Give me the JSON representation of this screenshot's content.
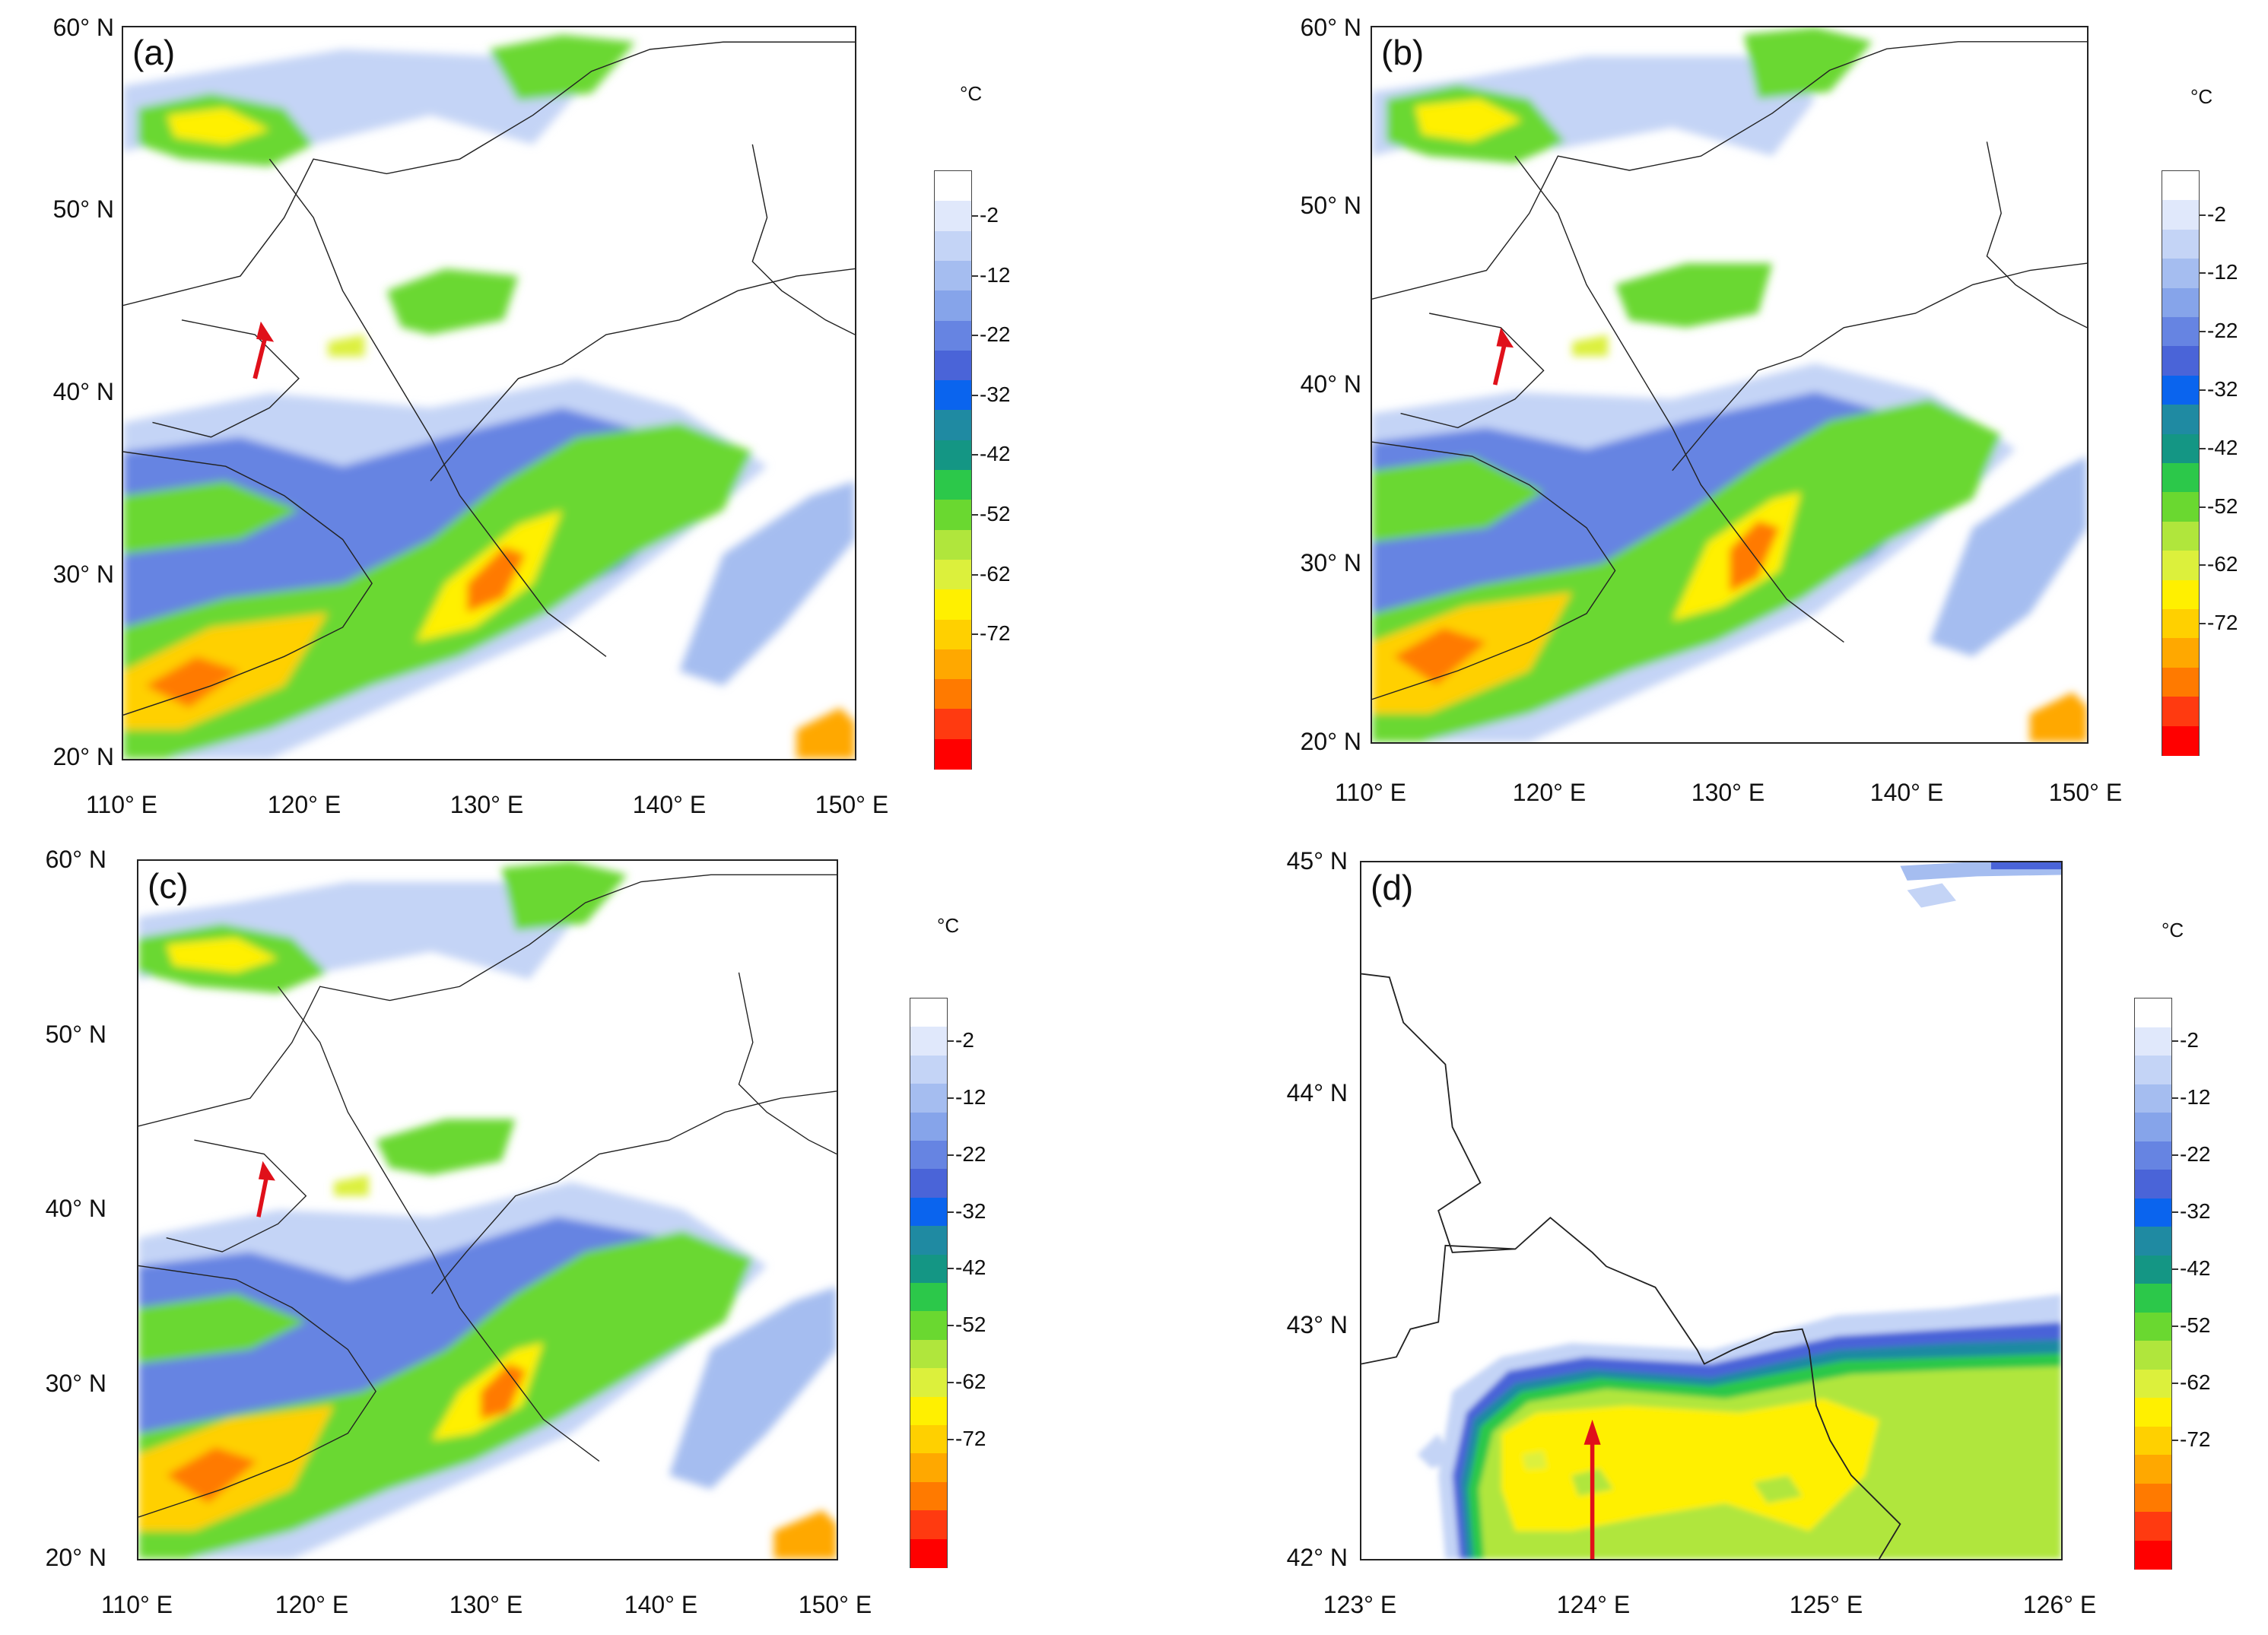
{
  "colorbar": {
    "unit": "°C",
    "labels": [
      "-2",
      "-12",
      "-22",
      "-32",
      "-42",
      "-52",
      "-62",
      "-72"
    ],
    "colors": [
      "#ffffff",
      "#e0e8fb",
      "#c4d4f6",
      "#a5bdf0",
      "#86a4ea",
      "#6684e2",
      "#4a64d8",
      "#0a64ee",
      "#1f8aa2",
      "#149684",
      "#2cc84a",
      "#6ad830",
      "#b0e63c",
      "#dcf03c",
      "#fff000",
      "#ffd000",
      "#ffa800",
      "#ff7a00",
      "#ff3a10",
      "#ff0000"
    ]
  },
  "panels": [
    {
      "label": "(a)",
      "y_ticks": [
        "60° N",
        "50° N",
        "40° N",
        "30° N",
        "20° N"
      ],
      "x_ticks": [
        "110° E",
        "120° E",
        "130° E",
        "140° E",
        "150° E"
      ]
    },
    {
      "label": "(b)",
      "y_ticks": [
        "60° N",
        "50° N",
        "40° N",
        "30° N",
        "20° N"
      ],
      "x_ticks": [
        "110° E",
        "120° E",
        "130° E",
        "140° E",
        "150° E"
      ]
    },
    {
      "label": "(c)",
      "y_ticks": [
        "60° N",
        "50° N",
        "40° N",
        "30° N",
        "20° N"
      ],
      "x_ticks": [
        "110° E",
        "120° E",
        "130° E",
        "140° E",
        "150° E"
      ]
    },
    {
      "label": "(d)",
      "y_ticks": [
        "45° N",
        "44° N",
        "43° N",
        "42° N"
      ],
      "x_ticks": [
        "123° E",
        "124° E",
        "125° E",
        "126° E"
      ]
    }
  ]
}
